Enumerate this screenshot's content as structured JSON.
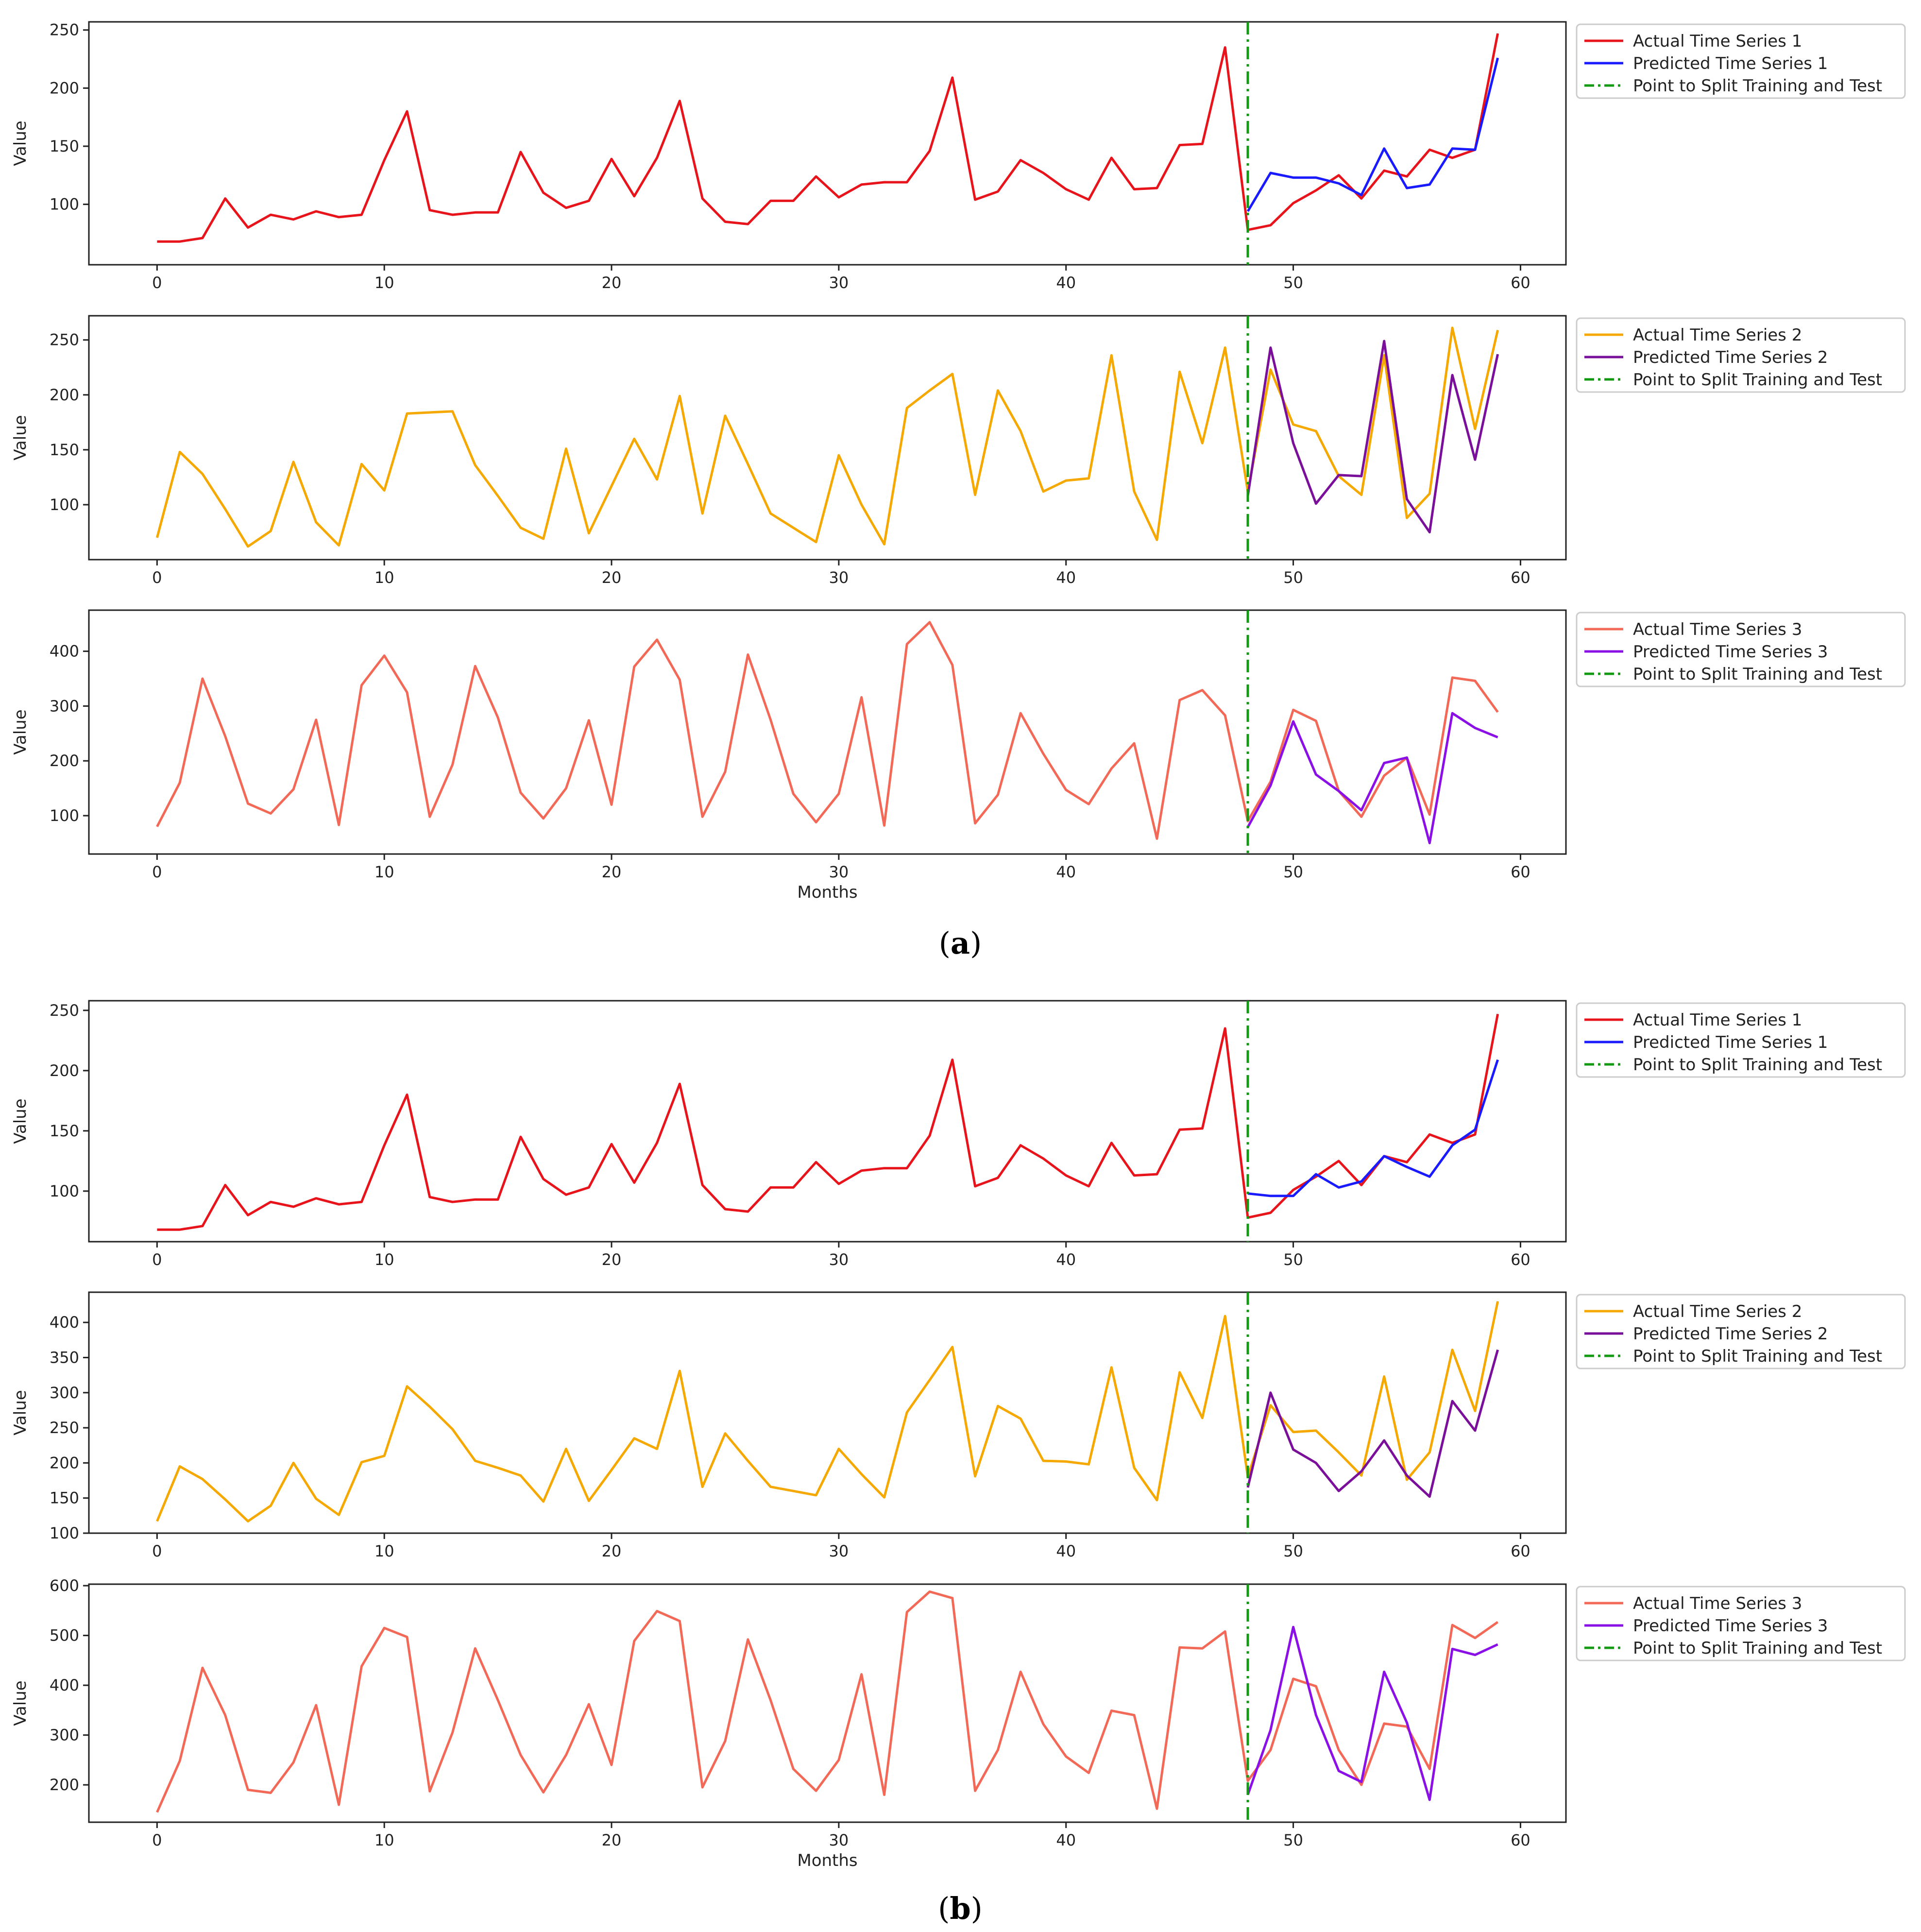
{
  "figure": {
    "captions": [
      "(a)",
      "(b)"
    ],
    "caption_letters": [
      "a",
      "b"
    ]
  },
  "colors": {
    "actual_1": "#e8141c",
    "predicted_1": "#1a1aff",
    "actual_2": "#f5a800",
    "predicted_2": "#7a0f9a",
    "actual_3": "#f26a57",
    "predicted_3": "#8a10e6",
    "split": "#119911"
  },
  "chart_data": [
    {
      "type": "line",
      "group": "a",
      "subplot": 1,
      "xlabel": "",
      "ylabel": "Value",
      "xlim": [
        -3,
        62
      ],
      "ylim": [
        48,
        257
      ],
      "xticks": [
        0,
        10,
        20,
        30,
        40,
        50,
        60
      ],
      "yticks": [
        100,
        150,
        200,
        250
      ],
      "split_x": 48,
      "series": [
        {
          "name": "Actual Time Series 1",
          "color_key": "actual_1",
          "style": "solid",
          "x_start": 0,
          "values": [
            68,
            68,
            71,
            105,
            80,
            91,
            87,
            94,
            89,
            91,
            138,
            180,
            95,
            91,
            93,
            93,
            145,
            110,
            97,
            103,
            139,
            107,
            140,
            189,
            105,
            85,
            83,
            103,
            103,
            124,
            106,
            117,
            119,
            119,
            146,
            209,
            104,
            111,
            138,
            127,
            113,
            104,
            140,
            113,
            114,
            151,
            152,
            235,
            78,
            82,
            101,
            112,
            125,
            105,
            129,
            124,
            147,
            140,
            147,
            247
          ]
        },
        {
          "name": "Predicted Time Series 1",
          "color_key": "predicted_1",
          "style": "solid",
          "x_start": 48,
          "values": [
            94,
            127,
            123,
            123,
            118,
            108,
            148,
            114,
            117,
            148,
            147,
            226
          ]
        },
        {
          "name": "Point to Split Training and Test",
          "color_key": "split",
          "style": "dashdot",
          "x_start": null,
          "values": []
        }
      ]
    },
    {
      "type": "line",
      "group": "a",
      "subplot": 2,
      "xlabel": "",
      "ylabel": "Value",
      "xlim": [
        -3,
        62
      ],
      "ylim": [
        50,
        272
      ],
      "xticks": [
        0,
        10,
        20,
        30,
        40,
        50,
        60
      ],
      "yticks": [
        100,
        150,
        200,
        250
      ],
      "split_x": 48,
      "series": [
        {
          "name": "Actual Time Series 2",
          "color_key": "actual_2",
          "style": "solid",
          "x_start": 0,
          "values": [
            70,
            148,
            128,
            96,
            62,
            76,
            139,
            84,
            63,
            137,
            113,
            183,
            184,
            185,
            136,
            108,
            79,
            69,
            151,
            74,
            117,
            160,
            123,
            199,
            92,
            181,
            137,
            92,
            79,
            66,
            145,
            100,
            64,
            188,
            204,
            219,
            109,
            204,
            167,
            112,
            122,
            124,
            236,
            112,
            68,
            221,
            156,
            243,
            112,
            223,
            173,
            167,
            126,
            109,
            236,
            88,
            110,
            261,
            169,
            259
          ]
        },
        {
          "name": "Predicted Time Series 2",
          "color_key": "predicted_2",
          "style": "solid",
          "x_start": 48,
          "values": [
            108,
            243,
            156,
            101,
            127,
            126,
            249,
            105,
            75,
            218,
            141,
            237
          ]
        },
        {
          "name": "Point to Split Training and Test",
          "color_key": "split",
          "style": "dashdot",
          "x_start": null,
          "values": []
        }
      ]
    },
    {
      "type": "line",
      "group": "a",
      "subplot": 3,
      "xlabel": "Months",
      "ylabel": "Value",
      "xlim": [
        -3,
        62
      ],
      "ylim": [
        30,
        475
      ],
      "xticks": [
        0,
        10,
        20,
        30,
        40,
        50,
        60
      ],
      "yticks": [
        100,
        200,
        300,
        400
      ],
      "split_x": 48,
      "series": [
        {
          "name": "Actual Time Series 3",
          "color_key": "actual_3",
          "style": "solid",
          "x_start": 0,
          "values": [
            80,
            160,
            350,
            245,
            122,
            104,
            148,
            275,
            83,
            338,
            392,
            325,
            98,
            193,
            373,
            279,
            142,
            95,
            150,
            274,
            120,
            372,
            421,
            348,
            98,
            180,
            394,
            275,
            140,
            88,
            140,
            316,
            82,
            413,
            453,
            375,
            86,
            138,
            287,
            213,
            147,
            121,
            186,
            232,
            58,
            311,
            329,
            283,
            90,
            162,
            293,
            273,
            145,
            98,
            173,
            206,
            102,
            352,
            346,
            289
          ]
        },
        {
          "name": "Predicted Time Series 3",
          "color_key": "predicted_3",
          "style": "solid",
          "x_start": 48,
          "values": [
            79,
            155,
            272,
            175,
            145,
            110,
            196,
            206,
            50,
            287,
            260,
            243
          ]
        },
        {
          "name": "Point to Split Training and Test",
          "color_key": "split",
          "style": "dashdot",
          "x_start": null,
          "values": []
        }
      ]
    },
    {
      "type": "line",
      "group": "b",
      "subplot": 1,
      "xlabel": "",
      "ylabel": "Value",
      "xlim": [
        -3,
        62
      ],
      "ylim": [
        58,
        258
      ],
      "xticks": [
        0,
        10,
        20,
        30,
        40,
        50,
        60
      ],
      "yticks": [
        100,
        150,
        200,
        250
      ],
      "split_x": 48,
      "series": [
        {
          "name": "Actual Time Series 1",
          "color_key": "actual_1",
          "style": "solid",
          "x_start": 0,
          "values": [
            68,
            68,
            71,
            105,
            80,
            91,
            87,
            94,
            89,
            91,
            138,
            180,
            95,
            91,
            93,
            93,
            145,
            110,
            97,
            103,
            139,
            107,
            140,
            189,
            105,
            85,
            83,
            103,
            103,
            124,
            106,
            117,
            119,
            119,
            146,
            209,
            104,
            111,
            138,
            127,
            113,
            104,
            140,
            113,
            114,
            151,
            152,
            235,
            78,
            82,
            101,
            112,
            125,
            105,
            129,
            124,
            147,
            140,
            147,
            247
          ]
        },
        {
          "name": "Predicted Time Series 1",
          "color_key": "predicted_1",
          "style": "solid",
          "x_start": 48,
          "values": [
            98,
            96,
            96,
            114,
            103,
            108,
            129,
            120,
            112,
            138,
            151,
            209
          ]
        },
        {
          "name": "Point to Split Training and Test",
          "color_key": "split",
          "style": "dashdot",
          "x_start": null,
          "values": []
        }
      ]
    },
    {
      "type": "line",
      "group": "b",
      "subplot": 2,
      "xlabel": "",
      "ylabel": "Value",
      "xlim": [
        -3,
        62
      ],
      "ylim": [
        100,
        443
      ],
      "xticks": [
        0,
        10,
        20,
        30,
        40,
        50,
        60
      ],
      "yticks": [
        100,
        150,
        200,
        250,
        300,
        350,
        400
      ],
      "split_x": 48,
      "series": [
        {
          "name": "Actual Time Series 2",
          "color_key": "actual_2",
          "style": "solid",
          "x_start": 0,
          "values": [
            117,
            195,
            177,
            148,
            117,
            139,
            200,
            149,
            126,
            201,
            210,
            309,
            280,
            248,
            203,
            193,
            182,
            145,
            220,
            146,
            190,
            235,
            220,
            331,
            166,
            242,
            203,
            166,
            160,
            154,
            220,
            184,
            151,
            272,
            318,
            365,
            181,
            281,
            263,
            203,
            202,
            198,
            336,
            193,
            147,
            329,
            264,
            409,
            180,
            282,
            244,
            246,
            215,
            182,
            323,
            176,
            215,
            361,
            274,
            430
          ]
        },
        {
          "name": "Predicted Time Series 2",
          "color_key": "predicted_2",
          "style": "solid",
          "x_start": 48,
          "values": [
            165,
            300,
            219,
            200,
            160,
            188,
            232,
            182,
            152,
            288,
            246,
            361
          ]
        },
        {
          "name": "Point to Split Training and Test",
          "color_key": "split",
          "style": "dashdot",
          "x_start": null,
          "values": []
        }
      ]
    },
    {
      "type": "line",
      "group": "b",
      "subplot": 3,
      "xlabel": "Months",
      "ylabel": "Value",
      "xlim": [
        -3,
        62
      ],
      "ylim": [
        125,
        603
      ],
      "xticks": [
        0,
        10,
        20,
        30,
        40,
        50,
        60
      ],
      "yticks": [
        200,
        300,
        400,
        500,
        600
      ],
      "split_x": 48,
      "series": [
        {
          "name": "Actual Time Series 3",
          "color_key": "actual_3",
          "style": "solid",
          "x_start": 0,
          "values": [
            145,
            248,
            435,
            340,
            190,
            184,
            245,
            360,
            160,
            438,
            515,
            497,
            187,
            305,
            474,
            370,
            260,
            185,
            260,
            362,
            240,
            489,
            549,
            529,
            195,
            288,
            492,
            370,
            232,
            188,
            250,
            422,
            180,
            547,
            588,
            575,
            188,
            270,
            427,
            322,
            257,
            224,
            349,
            340,
            152,
            476,
            474,
            508,
            208,
            270,
            413,
            398,
            270,
            200,
            323,
            317,
            232,
            521,
            495,
            527
          ]
        },
        {
          "name": "Predicted Time Series 3",
          "color_key": "predicted_3",
          "style": "solid",
          "x_start": 48,
          "values": [
            180,
            310,
            517,
            340,
            228,
            206,
            427,
            325,
            170,
            473,
            461,
            482
          ]
        },
        {
          "name": "Point to Split Training and Test",
          "color_key": "split",
          "style": "dashdot",
          "x_start": null,
          "values": []
        }
      ]
    }
  ]
}
